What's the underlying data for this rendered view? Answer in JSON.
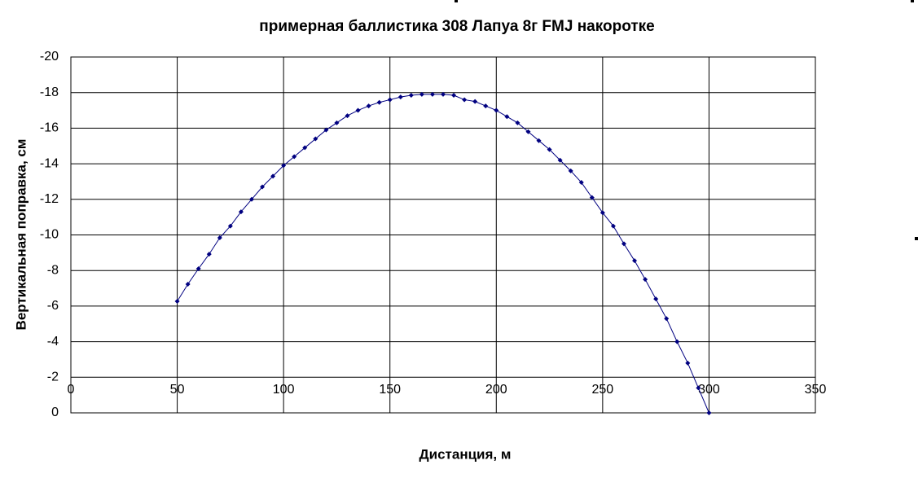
{
  "chart_data": {
    "type": "scatter",
    "title": "примерная баллистика 308 Лапуа 8г FMJ накоротке",
    "x_label": "Дистанция, м",
    "y_label": "Вертикальная поправка, см",
    "x": [
      50,
      55,
      60,
      65,
      70,
      75,
      80,
      85,
      90,
      95,
      100,
      105,
      110,
      115,
      120,
      125,
      130,
      135,
      140,
      145,
      150,
      155,
      160,
      165,
      170,
      175,
      180,
      185,
      190,
      195,
      200,
      205,
      210,
      215,
      220,
      225,
      230,
      235,
      240,
      245,
      250,
      255,
      260,
      265,
      270,
      275,
      280,
      285,
      290,
      295,
      300
    ],
    "series": [
      {
        "name": "Вертикальная поправка",
        "color": "#000080",
        "values": [
          -6.27,
          -7.23,
          -8.1,
          -8.92,
          -9.84,
          -10.5,
          -11.3,
          -12.0,
          -12.7,
          -13.3,
          -13.9,
          -14.4,
          -14.9,
          -15.4,
          -15.9,
          -16.3,
          -16.7,
          -17.0,
          -17.25,
          -17.45,
          -17.6,
          -17.75,
          -17.85,
          -17.9,
          -17.9,
          -17.9,
          -17.85,
          -17.6,
          -17.5,
          -17.25,
          -17.0,
          -16.65,
          -16.3,
          -15.8,
          -15.3,
          -14.8,
          -14.2,
          -13.6,
          -12.95,
          -12.1,
          -11.25,
          -10.5,
          -9.5,
          -8.55,
          -7.5,
          -6.4,
          -5.3,
          -4.0,
          -2.8,
          -1.4,
          0
        ]
      }
    ],
    "xlim": [
      0,
      350
    ],
    "xticks": [
      0,
      50,
      100,
      150,
      200,
      250,
      300,
      350
    ],
    "ylim": [
      0,
      -20
    ],
    "yticks": [
      0,
      -2,
      -4,
      -6,
      -8,
      -10,
      -12,
      -14,
      -16,
      -18,
      -20
    ],
    "grid": true
  }
}
